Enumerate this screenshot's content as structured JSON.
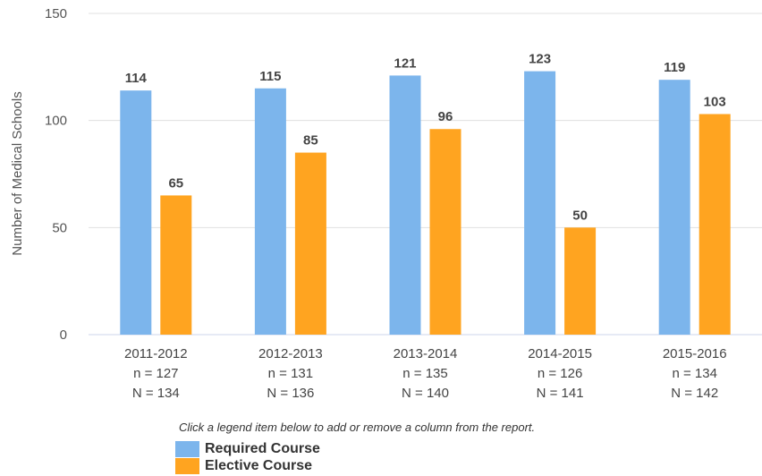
{
  "chart_data": {
    "type": "bar",
    "ylabel": "Number of Medical Schools",
    "ylim": [
      0,
      150
    ],
    "yticks": [
      0,
      50,
      100,
      150
    ],
    "grid": true,
    "categories": [
      {
        "label": "2011-2012",
        "n": "n = 127",
        "N": "N = 134"
      },
      {
        "label": "2012-2013",
        "n": "n = 131",
        "N": "N = 136"
      },
      {
        "label": "2013-2014",
        "n": "n = 135",
        "N": "N = 140"
      },
      {
        "label": "2014-2015",
        "n": "n = 126",
        "N": "N = 141"
      },
      {
        "label": "2015-2016",
        "n": "n = 134",
        "N": "N = 142"
      }
    ],
    "series": [
      {
        "name": "Required Course",
        "color": "#7cb5ec",
        "values": [
          114,
          115,
          121,
          123,
          119
        ]
      },
      {
        "name": "Elective Course",
        "color": "#ffa420",
        "values": [
          65,
          85,
          96,
          50,
          103
        ]
      }
    ],
    "legend_position": "bottom-left"
  },
  "note": "Click a legend item below to add or remove a column from the report."
}
